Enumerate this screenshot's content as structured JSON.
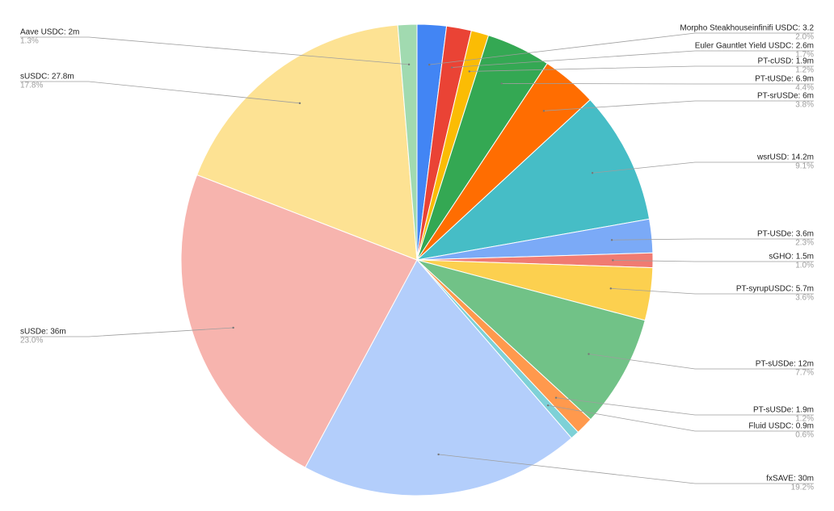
{
  "chart_data": {
    "type": "pie",
    "labels": [
      "Morpho Steakhouseinfinifi USDC: 3.2",
      "Euler Gauntlet Yield USDC: 2.6m",
      "PT-cUSD: 1.9m",
      "PT-tUSDe: 6.9m",
      "PT-srUSDe: 6m",
      "wsrUSD: 14.2m",
      "PT-USDe: 3.6m",
      "sGHO: 1.5m",
      "PT-syrupUSDC: 5.7m",
      "PT-sUSDe: 12m",
      "PT-sUSDe: 1.9m",
      "Fluid USDC: 0.9m",
      "fxSAVE: 30m",
      "sUSDe: 36m",
      "sUSDC: 27.8m",
      "Aave USDC: 2m"
    ],
    "values": [
      2.0,
      1.7,
      1.2,
      4.4,
      3.8,
      9.1,
      2.3,
      1.0,
      3.6,
      7.7,
      1.2,
      0.6,
      19.2,
      23.0,
      17.8,
      1.3
    ],
    "value_labels": [
      "2.0%",
      "1.7%",
      "1.2%",
      "4.4%",
      "3.8%",
      "9.1%",
      "2.3%",
      "1.0%",
      "3.6%",
      "7.7%",
      "1.2%",
      "0.6%",
      "19.2%",
      "23.0%",
      "17.8%",
      "1.3%"
    ],
    "colors": [
      "#4285f4",
      "#ea4335",
      "#fbbc04",
      "#34a853",
      "#ff6d01",
      "#46bdc6",
      "#7baaf7",
      "#f07b72",
      "#fcd04f",
      "#71c287",
      "#ff994d",
      "#7ed1d7",
      "#b3cefb",
      "#f7b4ae",
      "#fde293",
      "#a1dab0"
    ]
  }
}
